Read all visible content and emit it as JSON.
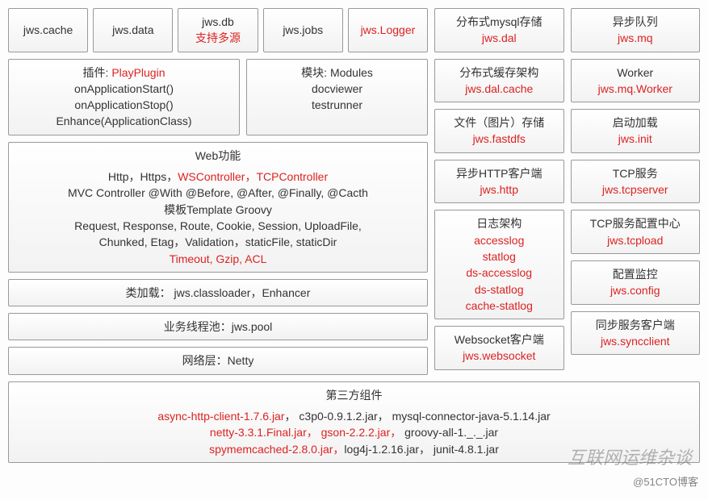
{
  "colors": {
    "border": "#999999",
    "bg_from": "#ffffff",
    "bg_to": "#f2f2f2",
    "red": "#dd2222",
    "text": "#333333"
  },
  "font": {
    "family": "Microsoft YaHei",
    "size_pt": 11,
    "line_height": 1.45
  },
  "left": {
    "topRow": [
      {
        "l1": "jws.cache"
      },
      {
        "l1": "jws.data"
      },
      {
        "l1": "jws.db",
        "l2_red": "支持多源"
      },
      {
        "l1": "jws.jobs"
      },
      {
        "l1_red": "jws.Logger"
      }
    ],
    "plugin": {
      "l1_pre": "插件: ",
      "l1_red": "PlayPlugin",
      "l2": "onApplicationStart()",
      "l3": "onApplicationStop()",
      "l4": "Enhance(ApplicationClass)"
    },
    "modules": {
      "l1": "模块: Modules",
      "l2": "docviewer",
      "l3": "testrunner"
    },
    "web": {
      "title": "Web功能",
      "r1_a": "Http，Https，",
      "r1_red": "WSController，TCPController",
      "r2": "MVC  Controller @With @Before, @After, @Finally, @Cacth",
      "r3": "模板Template Groovy",
      "r4": "Request, Response, Route, Cookie, Session, UploadFile,",
      "r5": "Chunked, Etag，Validation，staticFile, staticDir",
      "r6_red": "Timeout, Gzip, ACL"
    },
    "classloader": "类加载： jws.classloader，Enhancer",
    "pool": "业务线程池：jws.pool",
    "netty": "网络层：Netty"
  },
  "mid": [
    {
      "l1": "分布式mysql存储",
      "l2_red": "jws.dal"
    },
    {
      "l1": "分布式缓存架构",
      "l2_red": "jws.dal.cache"
    },
    {
      "l1": "文件（图片）存储",
      "l2_red": "jws.fastdfs"
    },
    {
      "l1": "异步HTTP客户端",
      "l2_red": "jws.http"
    },
    {
      "l1": "日志架构",
      "reds": [
        "accesslog",
        "statlog",
        "ds-accesslog",
        "ds-statlog",
        "cache-statlog"
      ]
    },
    {
      "l1": "Websocket客户端",
      "l2_red": "jws.websocket"
    }
  ],
  "far": [
    {
      "l1": "异步队列",
      "l2_red": "jws.mq"
    },
    {
      "l1": "Worker",
      "l2_red": "jws.mq.Worker"
    },
    {
      "l1": "启动加载",
      "l2_red": "jws.init"
    },
    {
      "l1": "TCP服务",
      "l2_red": "jws.tcpserver"
    },
    {
      "l1": "TCP服务配置中心",
      "l2_red": "jws.tcpload"
    },
    {
      "l1": "配置监控",
      "l2_red": "jws.config"
    },
    {
      "l1": "同步服务客户端",
      "l2_red": "jws.syncclient"
    }
  ],
  "thirdparty": {
    "title": "第三方组件",
    "r1_a_red": "async-http-client-1.7.6.jar",
    "r1_b": "，  c3p0-0.9.1.2.jar， mysql-connector-java-5.1.14.jar",
    "r2_a_red": "netty-3.3.1.Final.jar， gson-2.2.2.jar，",
    "r2_b": " groovy-all-1._._.jar",
    "r3_a_red": "spymemcached-2.8.0.jar，",
    "r3_b": "log4j-1.2.16.jar， junit-4.8.1.jar"
  },
  "watermark1": "互联网运维杂谈",
  "watermark2": "@51CTO博客"
}
